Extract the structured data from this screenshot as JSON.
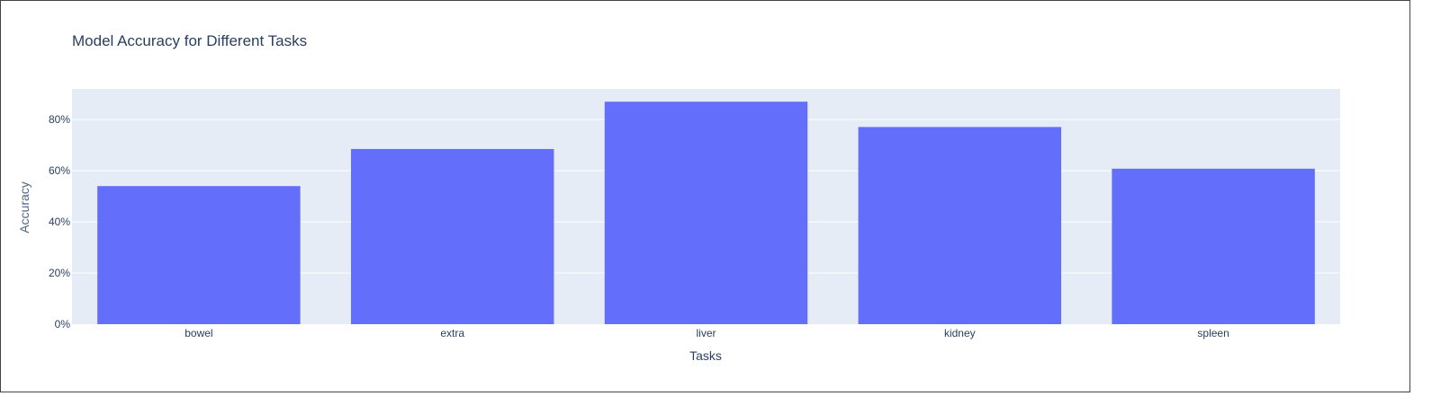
{
  "chart_data": {
    "type": "bar",
    "title": "Model Accuracy for Different Tasks",
    "xlabel": "Tasks",
    "ylabel": "Accuracy",
    "categories": [
      "bowel",
      "extra",
      "liver",
      "kidney",
      "spleen"
    ],
    "values": [
      0.54,
      0.685,
      0.87,
      0.771,
      0.608
    ],
    "ylim": [
      0,
      0.92
    ],
    "yticks": [
      0,
      0.2,
      0.4,
      0.6,
      0.8
    ],
    "ytick_labels": [
      "0%",
      "20%",
      "40%",
      "60%",
      "80%"
    ],
    "grid": true,
    "colors": {
      "bar": "#636efa",
      "plot_background": "#e5ecf6",
      "gridline": "#ffffff"
    }
  }
}
